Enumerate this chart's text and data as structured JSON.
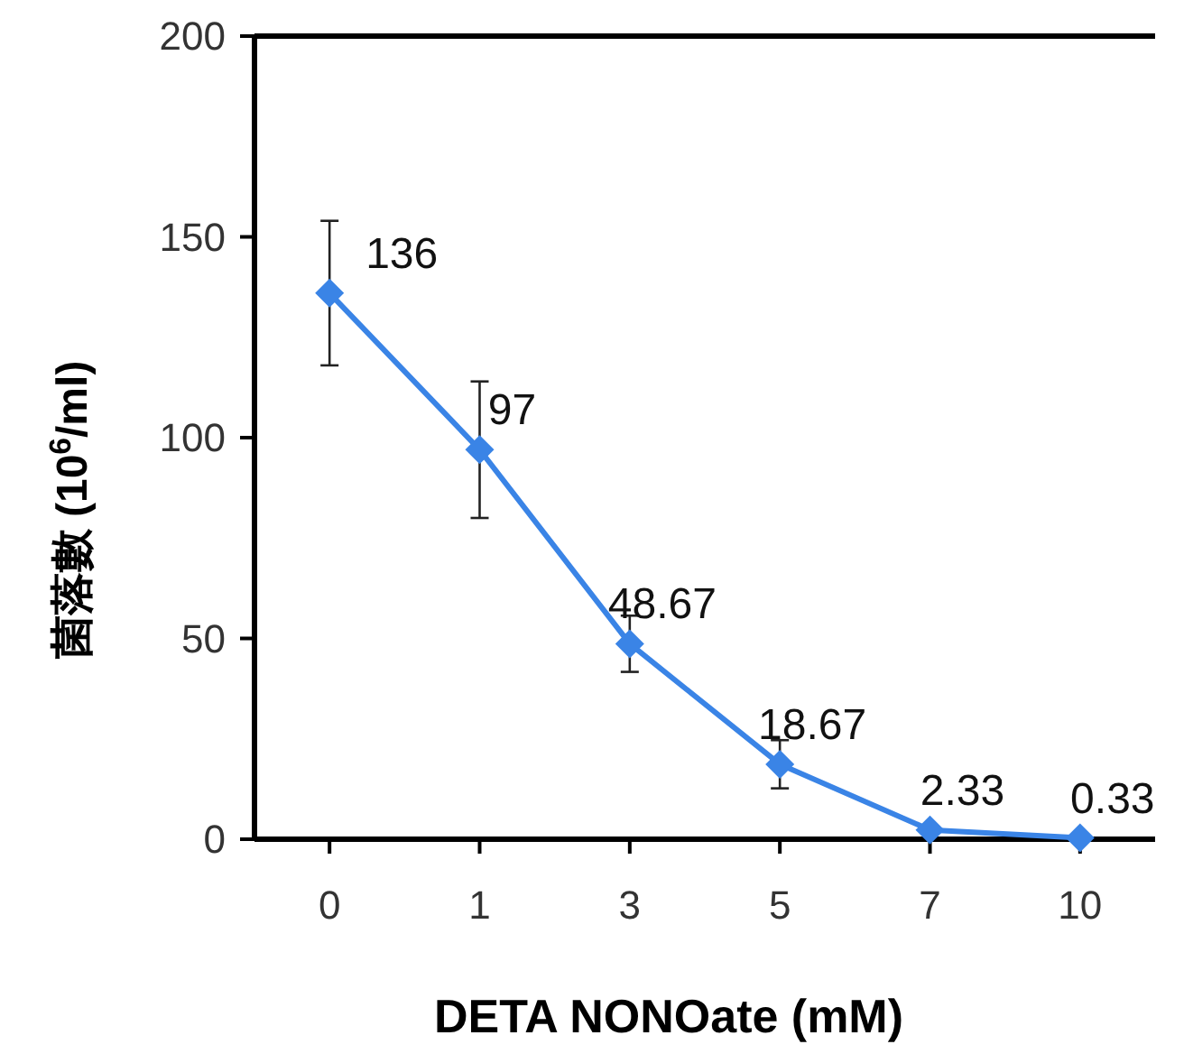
{
  "chart_data": {
    "type": "line",
    "xlabel": "DETA NONOate (mM)",
    "ylabel": "菌落數 (10$^{6}$/ml)",
    "categories": [
      "0",
      "1",
      "3",
      "5",
      "7",
      "10"
    ],
    "values": [
      136,
      97,
      48.67,
      18.67,
      2.33,
      0.33
    ],
    "errors": [
      18,
      17,
      7,
      6,
      null,
      null
    ],
    "color": "#3a84e6",
    "marker": "diamond",
    "line_style": "solid",
    "data_labels": true,
    "grid": false,
    "ylim": [
      0,
      200
    ],
    "yticks": [
      0,
      50,
      100,
      150,
      200
    ]
  }
}
